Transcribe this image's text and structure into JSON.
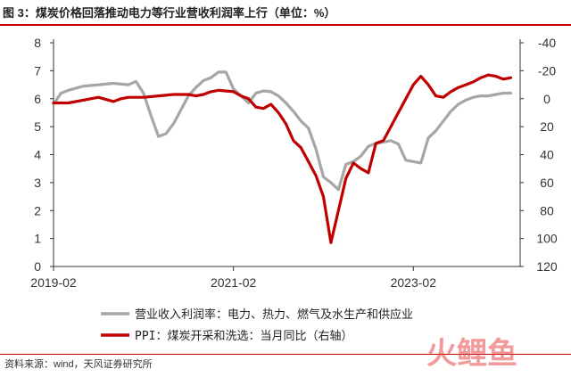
{
  "title": "图 3：煤炭价格回落推动电力等行业营收利润率上行（单位：%）",
  "source": "资料来源：wind，天风证券研究所",
  "watermark_text": "火鲤鱼",
  "chart_data": {
    "type": "line",
    "title": "图 3：煤炭价格回落推动电力等行业营收利润率上行（单位：%）",
    "x_tick_labels": [
      "2019-02",
      "2021-02",
      "2023-02"
    ],
    "x_ticks_month_index": [
      0,
      24,
      48
    ],
    "left_axis": {
      "min": 0,
      "max": 8,
      "ticks": [
        "0",
        "1",
        "2",
        "3",
        "4",
        "5",
        "6",
        "7",
        "8"
      ]
    },
    "right_axis": {
      "min": -40,
      "max": 120,
      "inverted": true,
      "ticks": [
        "-40",
        "-20",
        "0",
        "20",
        "40",
        "60",
        "80",
        "100",
        "120"
      ]
    },
    "legend_position": "bottom",
    "series": [
      {
        "name": "营业收入利润率：电力、热力、燃气及水生产和供应业",
        "axis": "left",
        "color": "#a6a6a6",
        "x": [
          0,
          1,
          2,
          4,
          6,
          8,
          10,
          11,
          12,
          13,
          14,
          15,
          16,
          17,
          18,
          19,
          20,
          21,
          22,
          23,
          24,
          25,
          26,
          27,
          28,
          29,
          30,
          31,
          32,
          33,
          34,
          35,
          36,
          37,
          38,
          39,
          40,
          41,
          42,
          43,
          44,
          45,
          46,
          47,
          48,
          49,
          50,
          51,
          52,
          53,
          54,
          55,
          56,
          57,
          58,
          59,
          60,
          61
        ],
        "values": [
          5.8,
          6.2,
          6.3,
          6.45,
          6.5,
          6.55,
          6.5,
          6.62,
          6.2,
          5.4,
          4.65,
          4.75,
          5.1,
          5.6,
          6.1,
          6.4,
          6.65,
          6.75,
          6.95,
          6.95,
          6.35,
          6.1,
          5.85,
          6.2,
          6.28,
          6.25,
          6.1,
          5.85,
          5.55,
          5.2,
          4.95,
          4.2,
          3.2,
          3.0,
          2.75,
          3.65,
          3.75,
          3.95,
          4.3,
          4.4,
          4.45,
          4.5,
          4.38,
          3.8,
          3.75,
          3.7,
          4.6,
          4.85,
          5.2,
          5.55,
          5.8,
          5.95,
          6.05,
          6.1,
          6.1,
          6.15,
          6.2,
          6.2
        ]
      },
      {
        "name": "PPI：煤炭开采和洗选：当月同比（右轴）",
        "axis": "right",
        "color": "#c00000",
        "x": [
          0,
          2,
          4,
          6,
          8,
          9,
          10,
          12,
          14,
          16,
          18,
          19,
          20,
          21,
          22,
          24,
          25,
          26,
          27,
          28,
          29,
          30,
          31,
          32,
          33,
          34,
          35,
          36,
          37,
          38,
          39,
          40,
          41,
          42,
          43,
          44,
          45,
          46,
          47,
          48,
          49,
          50,
          51,
          52,
          53,
          54,
          55,
          56,
          57,
          58,
          59,
          60,
          61
        ],
        "values": [
          3,
          3,
          1,
          -1,
          2,
          0,
          -1,
          -1,
          -2,
          -3,
          -3,
          -2,
          -3,
          -5,
          -6,
          -5,
          -2,
          0,
          6,
          7,
          4,
          10,
          18,
          30,
          35,
          45,
          55,
          70,
          103,
          80,
          57,
          46,
          50,
          53,
          32,
          30,
          20,
          10,
          0,
          -10,
          -16,
          -10,
          -2,
          -1,
          -5,
          -8,
          -10,
          -12,
          -15,
          -17,
          -16,
          -14,
          -15
        ]
      }
    ]
  }
}
